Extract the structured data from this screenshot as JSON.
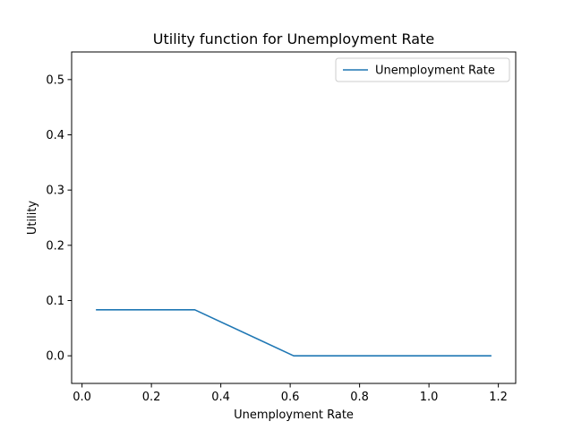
{
  "chart_data": {
    "type": "line",
    "title": "Utility function for Unemployment Rate",
    "xlabel": "Unemployment Rate",
    "ylabel": "Utility",
    "xlim": [
      -0.03,
      1.25
    ],
    "ylim": [
      -0.05,
      0.55
    ],
    "xticks": [
      0.0,
      0.2,
      0.4,
      0.6,
      0.8,
      1.0,
      1.2
    ],
    "xtick_labels": [
      "0.0",
      "0.2",
      "0.4",
      "0.6",
      "0.8",
      "1.0",
      "1.2"
    ],
    "yticks": [
      0.0,
      0.1,
      0.2,
      0.3,
      0.4,
      0.5
    ],
    "ytick_labels": [
      "0.0",
      "0.1",
      "0.2",
      "0.3",
      "0.4",
      "0.5"
    ],
    "grid": false,
    "legend_position": "upper right",
    "series": [
      {
        "name": "Unemployment Rate",
        "color": "#1f77b4",
        "x": [
          0.04,
          0.325,
          0.61,
          1.18
        ],
        "y": [
          0.0833,
          0.0833,
          0.0,
          0.0
        ]
      }
    ]
  }
}
